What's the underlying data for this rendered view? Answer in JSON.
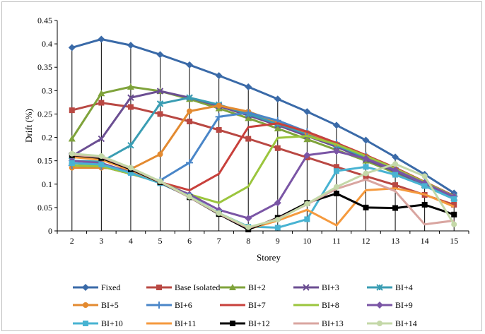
{
  "chart_data": {
    "type": "line",
    "title": "",
    "xlabel": "Storey",
    "ylabel": "Drift  (%)",
    "x": [
      2,
      3,
      4,
      5,
      6,
      7,
      8,
      9,
      10,
      11,
      12,
      13,
      14,
      15
    ],
    "ylim": [
      0,
      0.45
    ],
    "yticks": [
      "0",
      "0.05",
      "0.1",
      "0.15",
      "0.2",
      "0.25",
      "0.3",
      "0.35",
      "0.4",
      "0.45"
    ],
    "grid": "vertical drop lines",
    "legend_position": "bottom",
    "series": [
      {
        "name": "Fixed",
        "color": "#3a6aa8",
        "marker": "diamond",
        "values": [
          0.392,
          0.41,
          0.397,
          0.377,
          0.355,
          0.332,
          0.308,
          0.282,
          0.255,
          0.226,
          0.194,
          0.158,
          0.121,
          0.081
        ]
      },
      {
        "name": "Base Isolated",
        "color": "#b94843",
        "marker": "square",
        "values": [
          0.258,
          0.274,
          0.265,
          0.25,
          0.234,
          0.216,
          0.197,
          0.177,
          0.157,
          0.137,
          0.117,
          0.098,
          0.077,
          0.056
        ]
      },
      {
        "name": "BI+2",
        "color": "#7fa33b",
        "marker": "triangle",
        "values": [
          0.197,
          0.294,
          0.308,
          0.299,
          0.282,
          0.262,
          0.241,
          0.219,
          0.196,
          0.173,
          0.15,
          0.124,
          0.098,
          0.07
        ]
      },
      {
        "name": "BI+3",
        "color": "#6b4e92",
        "marker": "x",
        "values": [
          0.16,
          0.197,
          0.285,
          0.299,
          0.285,
          0.267,
          0.247,
          0.226,
          0.203,
          0.18,
          0.153,
          0.127,
          0.099,
          0.07
        ]
      },
      {
        "name": "BI+4",
        "color": "#3a9db3",
        "marker": "asterisk",
        "values": [
          0.15,
          0.148,
          0.183,
          0.272,
          0.285,
          0.27,
          0.25,
          0.229,
          0.207,
          0.183,
          0.157,
          0.13,
          0.101,
          0.072
        ]
      },
      {
        "name": "BI+5",
        "color": "#e38a30",
        "marker": "circle",
        "values": [
          0.135,
          0.135,
          0.132,
          0.164,
          0.256,
          0.268,
          0.255,
          0.233,
          0.21,
          0.186,
          0.16,
          0.133,
          0.103,
          0.073
        ]
      },
      {
        "name": "BI+6",
        "color": "#4a86c8",
        "marker": "plus",
        "values": [
          0.14,
          0.138,
          0.122,
          0.108,
          0.146,
          0.244,
          0.253,
          0.236,
          0.212,
          0.188,
          0.161,
          0.134,
          0.104,
          0.074
        ]
      },
      {
        "name": "BI+7",
        "color": "#c8403b",
        "marker": "none",
        "values": [
          0.14,
          0.138,
          0.122,
          0.104,
          0.087,
          0.122,
          0.222,
          0.23,
          0.212,
          0.188,
          0.162,
          0.135,
          0.105,
          0.075
        ]
      },
      {
        "name": "BI+8",
        "color": "#9bc53d",
        "marker": "none",
        "values": [
          0.14,
          0.138,
          0.122,
          0.104,
          0.078,
          0.06,
          0.095,
          0.199,
          0.203,
          0.185,
          0.16,
          0.133,
          0.104,
          0.074
        ]
      },
      {
        "name": "BI+9",
        "color": "#7a55a5",
        "marker": "diamond",
        "values": [
          0.15,
          0.145,
          0.125,
          0.103,
          0.078,
          0.045,
          0.027,
          0.06,
          0.162,
          0.17,
          0.155,
          0.13,
          0.102,
          0.073
        ]
      },
      {
        "name": "BI+10",
        "color": "#48b3d2",
        "marker": "square",
        "values": [
          0.145,
          0.142,
          0.124,
          0.102,
          0.074,
          0.038,
          0.009,
          0.007,
          0.025,
          0.128,
          0.137,
          0.12,
          0.096,
          0.068
        ]
      },
      {
        "name": "BI+11",
        "color": "#f59a3e",
        "marker": "none",
        "values": [
          0.158,
          0.152,
          0.13,
          0.104,
          0.073,
          0.037,
          0.004,
          0.022,
          0.045,
          0.012,
          0.087,
          0.091,
          0.078,
          0.052
        ]
      },
      {
        "name": "BI+12",
        "color": "#000000",
        "marker": "square",
        "values": [
          0.162,
          0.156,
          0.132,
          0.104,
          0.072,
          0.036,
          0.003,
          0.028,
          0.06,
          0.08,
          0.05,
          0.049,
          0.056,
          0.035
        ]
      },
      {
        "name": "BI+13",
        "color": "#d9a5a0",
        "marker": "none",
        "values": [
          0.163,
          0.158,
          0.134,
          0.105,
          0.072,
          0.037,
          0.006,
          0.026,
          0.057,
          0.09,
          0.11,
          0.085,
          0.014,
          0.022
        ]
      },
      {
        "name": "BI+14",
        "color": "#c4d8a8",
        "marker": "circle",
        "values": [
          0.165,
          0.16,
          0.135,
          0.106,
          0.073,
          0.038,
          0.008,
          0.024,
          0.058,
          0.094,
          0.123,
          0.143,
          0.117,
          0.014
        ]
      }
    ]
  }
}
